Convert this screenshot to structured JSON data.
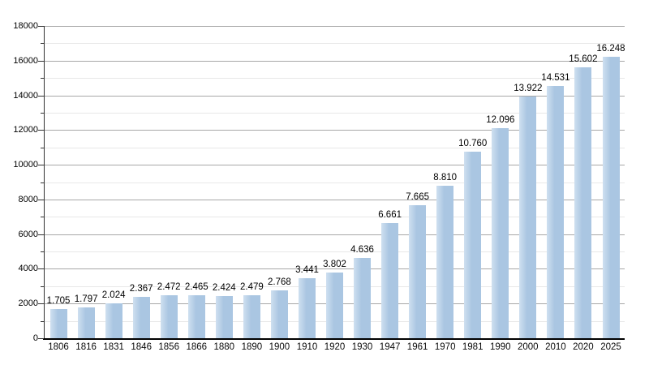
{
  "chart_data": {
    "type": "bar",
    "title": "",
    "xlabel": "",
    "ylabel": "",
    "categories": [
      "1806",
      "1816",
      "1831",
      "1846",
      "1856",
      "1866",
      "1880",
      "1890",
      "1900",
      "1910",
      "1920",
      "1930",
      "1947",
      "1961",
      "1970",
      "1981",
      "1990",
      "2000",
      "2010",
      "2020",
      "2025"
    ],
    "values": [
      1705,
      1797,
      2024,
      2367,
      2472,
      2465,
      2424,
      2479,
      2768,
      3441,
      3802,
      4636,
      6661,
      7665,
      8810,
      10760,
      12096,
      13922,
      14531,
      15602,
      16248
    ],
    "value_labels": [
      "1.705",
      "1.797",
      "2.024",
      "2.367",
      "2.472",
      "2.465",
      "2.424",
      "2.479",
      "2.768",
      "3.441",
      "3.802",
      "4.636",
      "6.661",
      "7.665",
      "8.810",
      "10.760",
      "12.096",
      "13.922",
      "14.531",
      "15.602",
      "16.248"
    ],
    "ylim": [
      0,
      18000
    ],
    "y_major_step": 2000,
    "y_minor_step": 1000,
    "y_tick_labels": [
      "0",
      "2000",
      "4000",
      "6000",
      "8000",
      "10000",
      "12000",
      "14000",
      "16000",
      "18000"
    ],
    "grid": "on",
    "legend": "none",
    "colors": {
      "bar": "#aac6e2",
      "bar_highlight": "#cfe0f0",
      "major_grid": "#a8a8a8",
      "minor_grid": "#e8e8e8",
      "x_axis": "#000000",
      "y_axis": "#333333",
      "text": "#000000"
    }
  }
}
